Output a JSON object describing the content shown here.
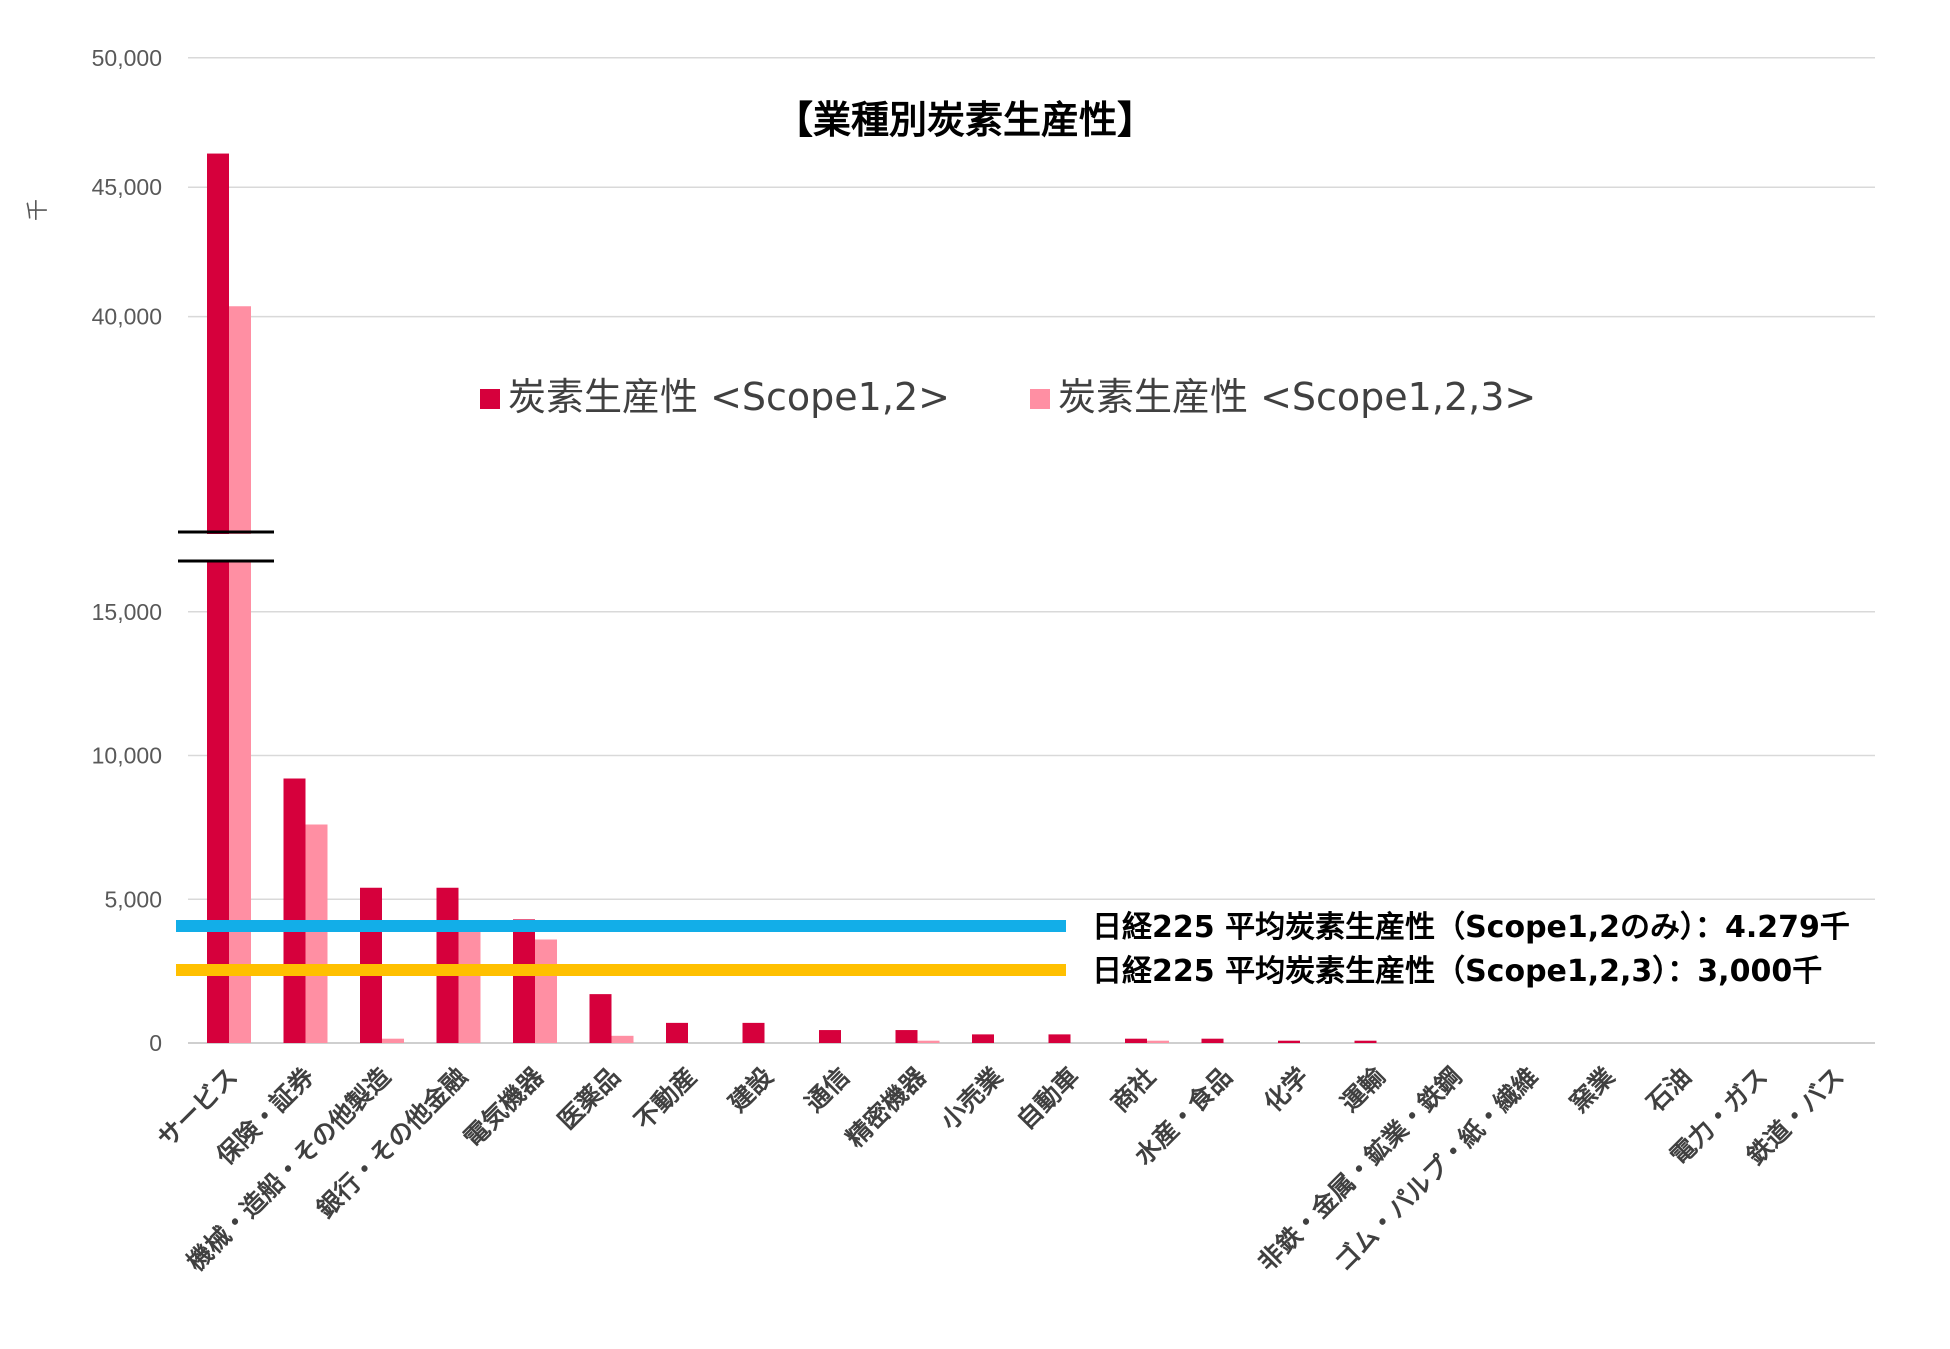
{
  "chart_data": {
    "type": "bar",
    "title": "【業種別炭素生産性】",
    "unit_label": "千",
    "y_ticks": [
      "0",
      "5,000",
      "10,000",
      "15,000",
      "40,000",
      "45,000",
      "50,000"
    ],
    "axis_break": true,
    "categories": [
      "サービス",
      "保険・証券",
      "機械・造船・その他製造",
      "銀行・その他金融",
      "電気機器",
      "医薬品",
      "不動産",
      "建設",
      "通信",
      "精密機器",
      "小売業",
      "自動車",
      "商社",
      "水産・食品",
      "化学",
      "運輸",
      "非鉄・金属・鉱業・鉄鋼",
      "ゴム・パルプ・紙・繊維",
      "窯業",
      "石油",
      "電力・ガス",
      "鉄道・バス"
    ],
    "series": [
      {
        "name": "炭素生産性 <Scope1,2>",
        "color": "#d6003c",
        "values": [
          46300,
          9200,
          5400,
          5400,
          4300,
          1700,
          700,
          700,
          450,
          450,
          300,
          300,
          150,
          150,
          80,
          80,
          0,
          0,
          0,
          0,
          0,
          0
        ]
      },
      {
        "name": "炭素生産性 <Scope1,2,3>",
        "color": "#ff8fa3",
        "values": [
          40400,
          7600,
          150,
          4000,
          3600,
          250,
          0,
          0,
          0,
          80,
          0,
          0,
          80,
          0,
          0,
          0,
          0,
          0,
          0,
          0,
          0,
          0
        ]
      }
    ],
    "reference_lines": [
      {
        "label": "日経225 平均炭素生産性（Scope1,2のみ）：4.279千",
        "value": 4279,
        "color": "#12aee8"
      },
      {
        "label": "日経225 平均炭素生産性（Scope1,2,3）：3,000千",
        "value": 3000,
        "color": "#ffc000"
      }
    ],
    "grid": true,
    "legend_position": "top-center"
  }
}
